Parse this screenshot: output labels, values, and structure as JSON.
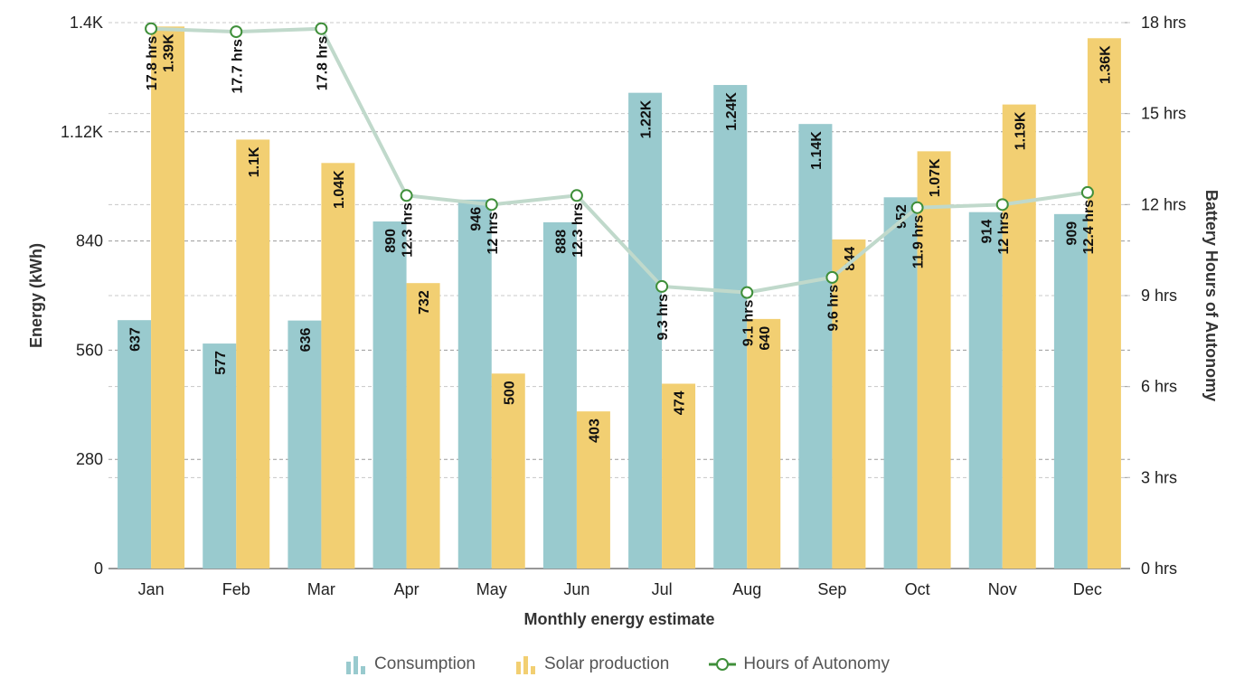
{
  "chart_data": {
    "type": "bar",
    "xlabel": "Monthly energy estimate",
    "ylabel": "Energy (kWh)",
    "y2label": "Battery Hours of Autonomy",
    "categories": [
      "Jan",
      "Feb",
      "Mar",
      "Apr",
      "May",
      "Jun",
      "Jul",
      "Aug",
      "Sep",
      "Oct",
      "Nov",
      "Dec"
    ],
    "ylim": [
      0,
      1400
    ],
    "yticks": [
      0,
      280,
      560,
      840,
      1120,
      1400
    ],
    "ytick_labels": [
      "0",
      "280",
      "560",
      "840",
      "1.12K",
      "1.4K"
    ],
    "y2lim": [
      0,
      18
    ],
    "y2ticks": [
      0,
      3,
      6,
      9,
      12,
      15,
      18
    ],
    "y2tick_labels": [
      "0 hrs",
      "3 hrs",
      "6 hrs",
      "9 hrs",
      "12 hrs",
      "15 hrs",
      "18 hrs"
    ],
    "grid": true,
    "legend_position": "bottom-center",
    "series": [
      {
        "name": "Consumption",
        "type": "bar",
        "axis": "left",
        "color": "#99cace",
        "values": [
          637,
          577,
          636,
          890,
          946,
          888,
          1220,
          1240,
          1140,
          952,
          914,
          909
        ],
        "labels": [
          "637",
          "577",
          "636",
          "890",
          "946",
          "888",
          "1.22K",
          "1.24K",
          "1.14K",
          "952",
          "914",
          "909"
        ]
      },
      {
        "name": "Solar production",
        "type": "bar",
        "axis": "left",
        "color": "#f2cf72",
        "values": [
          1390,
          1100,
          1040,
          732,
          500,
          403,
          474,
          640,
          844,
          1070,
          1190,
          1360
        ],
        "labels": [
          "1.39K",
          "1.1K",
          "1.04K",
          "732",
          "500",
          "403",
          "474",
          "640",
          "844",
          "1.07K",
          "1.19K",
          "1.36K"
        ]
      },
      {
        "name": "Hours of Autonomy",
        "type": "line",
        "axis": "right",
        "color": "#c0d9cb",
        "marker_color": "#3f8f3a",
        "values": [
          17.8,
          17.7,
          17.8,
          12.3,
          12,
          12.3,
          9.3,
          9.1,
          9.6,
          11.9,
          12,
          12.4
        ],
        "labels": [
          "17.8 hrs",
          "17.7 hrs",
          "17.8 hrs",
          "12.3 hrs",
          "12 hrs",
          "12.3 hrs",
          "9.3 hrs",
          "9.1 hrs",
          "9.6 hrs",
          "11.9 hrs",
          "12 hrs",
          "12.4 hrs"
        ]
      }
    ]
  },
  "legend": {
    "items": [
      {
        "label": "Consumption",
        "icon": "bar-chart-icon"
      },
      {
        "label": "Solar production",
        "icon": "bar-chart-icon"
      },
      {
        "label": "Hours of Autonomy",
        "icon": "line-marker-icon"
      }
    ]
  }
}
